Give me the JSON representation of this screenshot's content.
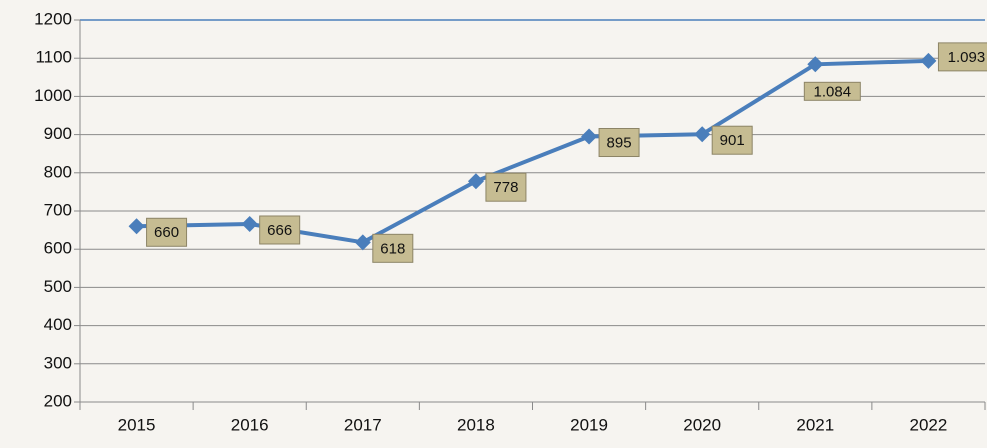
{
  "chart_data": {
    "type": "line",
    "categories": [
      "2015",
      "2016",
      "2017",
      "2018",
      "2019",
      "2020",
      "2021",
      "2022"
    ],
    "values": [
      660,
      666,
      618,
      778,
      895,
      901,
      1084,
      1093
    ],
    "value_labels": [
      "660",
      "666",
      "618",
      "778",
      "895",
      "901",
      "1.084",
      "1.093"
    ],
    "color": "#4a7ebb",
    "label_color": "#c6bc92",
    "ylim": [
      200,
      1200
    ],
    "yticks": [
      200,
      300,
      400,
      500,
      600,
      700,
      800,
      900,
      1000,
      1100,
      1200
    ],
    "grid": true
  }
}
